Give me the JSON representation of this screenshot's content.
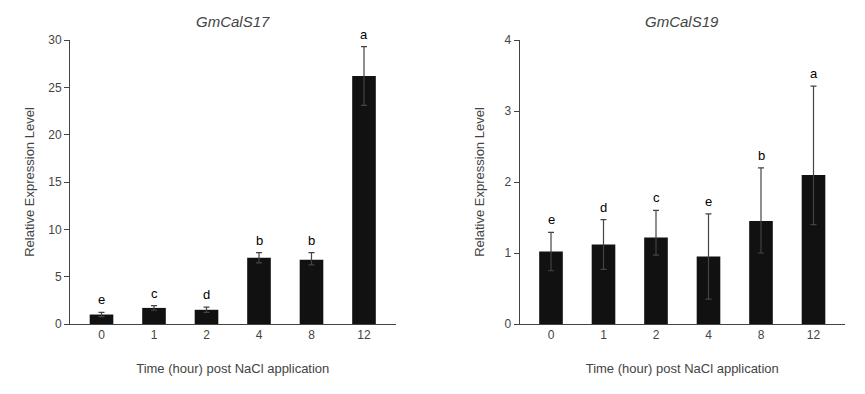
{
  "chart_data": [
    {
      "type": "bar",
      "title": "GmCalS17",
      "xlabel": "Time (hour) post NaCl application",
      "ylabel": "Relative Expression Level",
      "categories": [
        "0",
        "1",
        "2",
        "4",
        "8",
        "12"
      ],
      "values": [
        1.0,
        1.7,
        1.5,
        7.0,
        6.8,
        26.2
      ],
      "errors_up": [
        0.22,
        0.25,
        0.28,
        0.55,
        0.75,
        3.1
      ],
      "errors_down": [
        0.22,
        0.25,
        0.28,
        0.55,
        0.55,
        3.1
      ],
      "annotations": [
        "e",
        "c",
        "d",
        "b",
        "b",
        "a"
      ],
      "color": "#111111",
      "ylim": [
        0,
        30
      ],
      "yticks": [
        0,
        5,
        10,
        15,
        20,
        25,
        30
      ],
      "grid": false
    },
    {
      "type": "bar",
      "title": "GmCalS19",
      "xlabel": "Time (hour) post NaCl application",
      "ylabel": "Relative Expression Level",
      "categories": [
        "0",
        "1",
        "2",
        "4",
        "8",
        "12"
      ],
      "values": [
        1.02,
        1.12,
        1.22,
        0.95,
        1.45,
        2.1
      ],
      "errors_up": [
        0.27,
        0.35,
        0.38,
        0.6,
        0.75,
        1.25
      ],
      "errors_down": [
        0.27,
        0.35,
        0.25,
        0.6,
        0.45,
        0.7
      ],
      "annotations": [
        "e",
        "d",
        "c",
        "e",
        "b",
        "a"
      ],
      "color": "#111111",
      "ylim": [
        0,
        4
      ],
      "yticks": [
        0,
        1,
        2,
        3,
        4
      ],
      "grid": false
    }
  ]
}
